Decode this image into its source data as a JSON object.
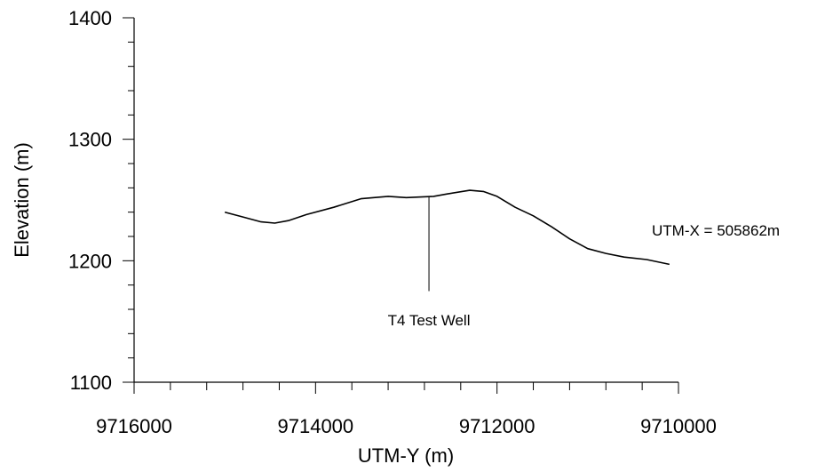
{
  "chart_data": {
    "type": "line",
    "title": "",
    "xlabel": "UTM-Y (m)",
    "ylabel": "Elevation (m)",
    "xlim": [
      9716000,
      9710000
    ],
    "ylim": [
      1100,
      1400
    ],
    "x_reversed": true,
    "grid": false,
    "x_major_ticks": [
      9716000,
      9714000,
      9712000,
      9710000
    ],
    "x_tick_labels": [
      "9716000",
      "9714000",
      "9712000",
      "9710000"
    ],
    "x_minor_step": 400,
    "y_major_ticks": [
      1100,
      1200,
      1300,
      1400
    ],
    "y_tick_labels": [
      "1100",
      "1200",
      "1300",
      "1400"
    ],
    "y_minor_step": 20,
    "series": [
      {
        "color": "#000000",
        "x": [
          9715000,
          9714800,
          9714600,
          9714450,
          9714300,
          9714100,
          9713800,
          9713500,
          9713200,
          9713000,
          9712700,
          9712550,
          9712300,
          9712150,
          9712000,
          9711800,
          9711600,
          9711400,
          9711200,
          9711000,
          9710800,
          9710600,
          9710350,
          9710100
        ],
        "y": [
          1240,
          1236,
          1232,
          1231,
          1233,
          1238,
          1244,
          1251,
          1253,
          1252,
          1253,
          1255,
          1258,
          1257,
          1253,
          1244,
          1237,
          1228,
          1218,
          1210,
          1206,
          1203,
          1201,
          1197
        ]
      }
    ],
    "annotations": [
      {
        "text": "T4 Test Well",
        "x": 9712750,
        "y_top": 1253,
        "y_bottom": 1175,
        "type": "well-marker"
      },
      {
        "text": "UTM-X = 505862m",
        "anchor": "right-of-line"
      }
    ]
  }
}
